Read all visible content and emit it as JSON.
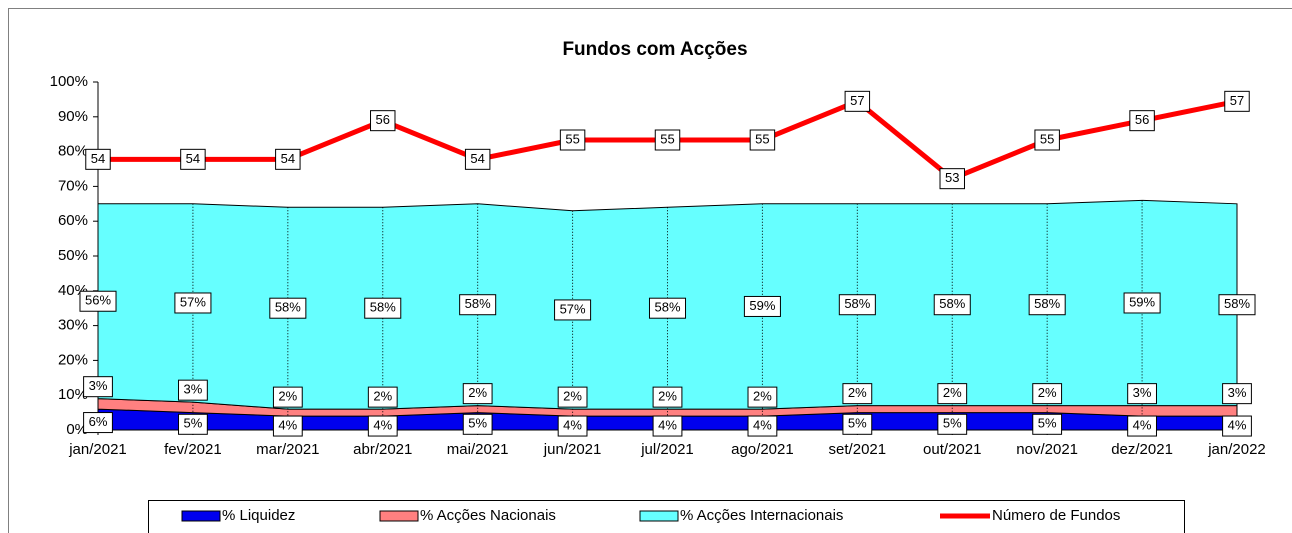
{
  "chart_data": {
    "type": "stacked_area_line",
    "title": "Fundos com Acções",
    "categories": [
      "jan/2021",
      "fev/2021",
      "mar/2021",
      "abr/2021",
      "mai/2021",
      "jun/2021",
      "jul/2021",
      "ago/2021",
      "set/2021",
      "out/2021",
      "nov/2021",
      "dez/2021",
      "jan/2022"
    ],
    "series": [
      {
        "name": "% Liquidez",
        "color": "#0000ee",
        "values": [
          6,
          5,
          4,
          4,
          5,
          4,
          4,
          4,
          5,
          5,
          5,
          4,
          4
        ],
        "value_labels": [
          "6%",
          "5%",
          "4%",
          "4%",
          "5%",
          "4%",
          "4%",
          "4%",
          "5%",
          "5%",
          "5%",
          "4%",
          "4%"
        ]
      },
      {
        "name": "% Acções Nacionais",
        "color": "#ff8080",
        "values": [
          3,
          3,
          2,
          2,
          2,
          2,
          2,
          2,
          2,
          2,
          2,
          3,
          3
        ],
        "value_labels": [
          "3%",
          "3%",
          "2%",
          "2%",
          "2%",
          "2%",
          "2%",
          "2%",
          "2%",
          "2%",
          "2%",
          "3%",
          "3%"
        ]
      },
      {
        "name": "% Acções Internacionais",
        "color": "#66ffff",
        "values": [
          56,
          57,
          58,
          58,
          58,
          57,
          58,
          59,
          58,
          58,
          58,
          59,
          58
        ],
        "value_labels": [
          "56%",
          "57%",
          "58%",
          "58%",
          "58%",
          "57%",
          "58%",
          "59%",
          "58%",
          "58%",
          "58%",
          "59%",
          "58%"
        ]
      },
      {
        "name": "Número de Fundos",
        "color": "#ff0000",
        "axis": "y2",
        "values": [
          54,
          54,
          54,
          56,
          54,
          55,
          55,
          55,
          57,
          53,
          55,
          56,
          57
        ]
      }
    ],
    "ylim": [
      0,
      100
    ],
    "yticks": [
      {
        "value": 0,
        "label": "0%"
      },
      {
        "value": 10,
        "label": "10%"
      },
      {
        "value": 20,
        "label": "20%"
      },
      {
        "value": 30,
        "label": "30%"
      },
      {
        "value": 40,
        "label": "40%"
      },
      {
        "value": 50,
        "label": "50%"
      },
      {
        "value": 60,
        "label": "60%"
      },
      {
        "value": 70,
        "label": "70%"
      },
      {
        "value": 80,
        "label": "80%"
      },
      {
        "value": 90,
        "label": "90%"
      },
      {
        "value": 100,
        "label": "100%"
      }
    ],
    "y2lim": [
      40,
      58
    ],
    "legend": "bottom"
  }
}
